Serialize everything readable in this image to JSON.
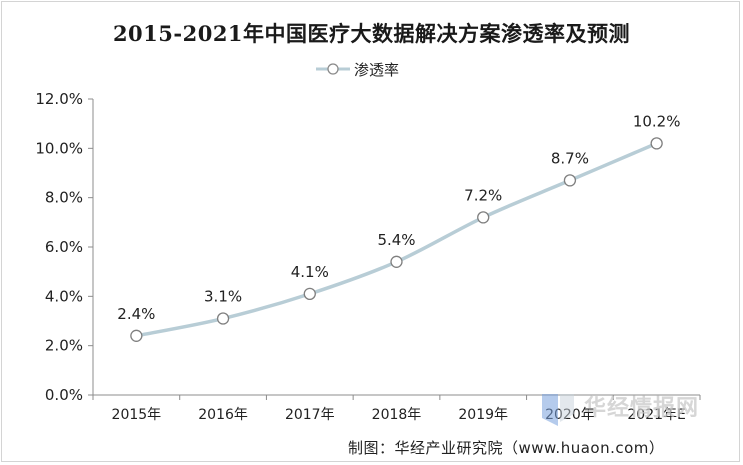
{
  "chart_data": {
    "type": "line",
    "title": "2015-2021年中国医疗大数据解决方案渗透率及预测",
    "categories": [
      "2015年",
      "2016年",
      "2017年",
      "2018年",
      "2019年",
      "2020年",
      "2021年E"
    ],
    "series": [
      {
        "name": "渗透率",
        "values": [
          2.4,
          3.1,
          4.1,
          5.4,
          7.2,
          8.7,
          10.2
        ],
        "labels": [
          "2.4%",
          "3.1%",
          "4.1%",
          "5.4%",
          "7.2%",
          "8.7%",
          "10.2%"
        ],
        "color": "#b8cdd6",
        "marker": "open-circle"
      }
    ],
    "y_ticks": [
      "0.0%",
      "2.0%",
      "4.0%",
      "6.0%",
      "8.0%",
      "10.0%",
      "12.0%"
    ],
    "ylim": [
      0,
      12
    ],
    "xlabel": "",
    "ylabel": "",
    "grid": false,
    "legend": "top-center"
  },
  "credit": "制图：华经产业研究院（www.huaon.com）",
  "watermark": "华经情报网"
}
